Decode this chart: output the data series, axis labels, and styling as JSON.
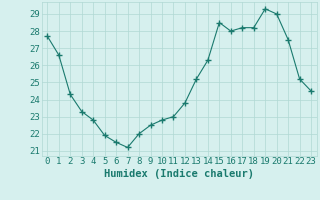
{
  "x": [
    0,
    1,
    2,
    3,
    4,
    5,
    6,
    7,
    8,
    9,
    10,
    11,
    12,
    13,
    14,
    15,
    16,
    17,
    18,
    19,
    20,
    21,
    22,
    23
  ],
  "y": [
    27.7,
    26.6,
    24.3,
    23.3,
    22.8,
    21.9,
    21.5,
    21.2,
    22.0,
    22.5,
    22.8,
    23.0,
    23.8,
    25.2,
    26.3,
    28.5,
    28.0,
    28.2,
    28.2,
    29.3,
    29.0,
    27.5,
    25.2,
    24.5
  ],
  "line_color": "#1a7a6e",
  "marker": "+",
  "marker_size": 4,
  "bg_color": "#d6f0ee",
  "grid_color": "#b0d8d4",
  "xlabel": "Humidex (Indice chaleur)",
  "ylabel_ticks": [
    21,
    22,
    23,
    24,
    25,
    26,
    27,
    28,
    29
  ],
  "ylim": [
    20.7,
    29.7
  ],
  "xlim": [
    -0.5,
    23.5
  ],
  "tick_label_color": "#1a7a6e",
  "axis_label_color": "#1a7a6e",
  "xlabel_fontsize": 7.5,
  "tick_fontsize": 6.5
}
